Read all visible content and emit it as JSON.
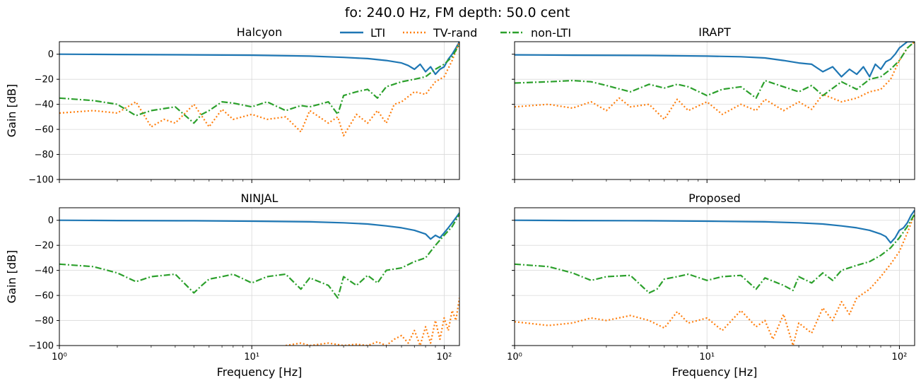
{
  "figure": {
    "suptitle": "fo: 240.0 Hz, FM depth: 50.0 cent"
  },
  "legend": {
    "placement": "top-center",
    "entries": [
      {
        "label": "LTI",
        "color": "#1f77b4",
        "style": "solid"
      },
      {
        "label": "TV-rand",
        "color": "#ff7f0e",
        "style": "dotted"
      },
      {
        "label": "non-LTI",
        "color": "#2ca02c",
        "style": "dashdot"
      }
    ]
  },
  "chart_data": [
    {
      "type": "line",
      "title": "Halcyon",
      "xlabel": "",
      "ylabel": "Gain [dB]",
      "xscale": "log",
      "xlim": [
        1,
        120
      ],
      "ylim": [
        -100,
        10
      ],
      "yticks": [
        0,
        -20,
        -40,
        -60,
        -80,
        -100
      ],
      "ytick_labels": [
        "0",
        "−20",
        "−40",
        "−60",
        "−80",
        "−100"
      ],
      "xtick_labels": [],
      "grid": true,
      "series": [
        {
          "name": "LTI",
          "color": "#1f77b4",
          "style": "solid",
          "x": [
            1,
            2,
            5,
            10,
            20,
            30,
            40,
            50,
            60,
            65,
            70,
            75,
            80,
            85,
            90,
            95,
            100,
            105,
            110,
            115,
            120
          ],
          "y": [
            0,
            -0.2,
            -0.5,
            -0.8,
            -1.5,
            -2.5,
            -3.5,
            -5,
            -7,
            -9,
            -12,
            -8,
            -14,
            -10,
            -16,
            -12,
            -10,
            -4,
            0,
            5,
            10
          ]
        },
        {
          "name": "TV-rand",
          "color": "#ff7f0e",
          "style": "dotted",
          "x": [
            1,
            1.5,
            2,
            2.5,
            3,
            3.5,
            4,
            5,
            6,
            7,
            8,
            10,
            12,
            15,
            18,
            20,
            25,
            28,
            30,
            35,
            40,
            45,
            50,
            55,
            60,
            70,
            80,
            90,
            100,
            110,
            120
          ],
          "y": [
            -47,
            -45,
            -47,
            -38,
            -58,
            -52,
            -55,
            -40,
            -58,
            -44,
            -52,
            -48,
            -52,
            -50,
            -62,
            -45,
            -55,
            -50,
            -65,
            -48,
            -55,
            -45,
            -55,
            -40,
            -38,
            -30,
            -32,
            -22,
            -18,
            -5,
            10
          ]
        },
        {
          "name": "non-LTI",
          "color": "#2ca02c",
          "style": "dashdot",
          "x": [
            1,
            1.5,
            2,
            2.5,
            3,
            4,
            5,
            5.5,
            6,
            7,
            8,
            10,
            12,
            15,
            18,
            20,
            25,
            28,
            30,
            35,
            40,
            45,
            50,
            60,
            70,
            80,
            90,
            100,
            110,
            120
          ],
          "y": [
            -35,
            -37,
            -40,
            -49,
            -45,
            -42,
            -55,
            -48,
            -45,
            -38,
            -39,
            -42,
            -38,
            -45,
            -41,
            -42,
            -38,
            -48,
            -33,
            -30,
            -28,
            -35,
            -26,
            -22,
            -20,
            -18,
            -12,
            -8,
            -2,
            8
          ]
        }
      ]
    },
    {
      "type": "line",
      "title": "IRAPT",
      "xlabel": "",
      "ylabel": "",
      "xscale": "log",
      "xlim": [
        1,
        120
      ],
      "ylim": [
        -100,
        10
      ],
      "yticks": [
        0,
        -20,
        -40,
        -60,
        -80,
        -100
      ],
      "ytick_labels": [],
      "xtick_labels": [],
      "grid": true,
      "series": [
        {
          "name": "LTI",
          "color": "#1f77b4",
          "style": "solid",
          "x": [
            1,
            2,
            5,
            10,
            15,
            20,
            25,
            30,
            35,
            40,
            45,
            50,
            55,
            60,
            65,
            70,
            75,
            80,
            85,
            90,
            95,
            100,
            110,
            120
          ],
          "y": [
            -0.5,
            -0.8,
            -1,
            -1.5,
            -2,
            -3,
            -5,
            -7,
            -8,
            -14,
            -10,
            -18,
            -12,
            -16,
            -10,
            -18,
            -8,
            -12,
            -6,
            -4,
            0,
            5,
            10,
            10
          ]
        },
        {
          "name": "TV-rand",
          "color": "#ff7f0e",
          "style": "dotted",
          "x": [
            1,
            1.5,
            2,
            2.5,
            3,
            3.5,
            4,
            5,
            6,
            7,
            8,
            10,
            12,
            15,
            18,
            20,
            25,
            30,
            35,
            40,
            50,
            60,
            70,
            80,
            90,
            100,
            110,
            120
          ],
          "y": [
            -42,
            -40,
            -43,
            -38,
            -45,
            -35,
            -42,
            -40,
            -52,
            -36,
            -45,
            -38,
            -48,
            -40,
            -45,
            -36,
            -45,
            -38,
            -44,
            -32,
            -38,
            -35,
            -30,
            -28,
            -20,
            -5,
            5,
            10
          ]
        },
        {
          "name": "non-LTI",
          "color": "#2ca02c",
          "style": "dashdot",
          "x": [
            1,
            1.5,
            2,
            2.5,
            3,
            4,
            5,
            6,
            7,
            8,
            10,
            12,
            15,
            18,
            20,
            25,
            30,
            35,
            40,
            50,
            60,
            70,
            80,
            90,
            100,
            110,
            120
          ],
          "y": [
            -23,
            -22,
            -21,
            -22,
            -25,
            -30,
            -24,
            -27,
            -24,
            -26,
            -33,
            -28,
            -26,
            -35,
            -21,
            -26,
            -30,
            -25,
            -33,
            -22,
            -28,
            -20,
            -18,
            -12,
            -5,
            5,
            10
          ]
        }
      ]
    },
    {
      "type": "line",
      "title": "NINJAL",
      "xlabel": "Frequency [Hz]",
      "ylabel": "Gain [dB]",
      "xscale": "log",
      "xlim": [
        1,
        120
      ],
      "ylim": [
        -100,
        10
      ],
      "yticks": [
        0,
        -20,
        -40,
        -60,
        -80,
        -100
      ],
      "ytick_labels": [
        "0",
        "−20",
        "−40",
        "−60",
        "−80",
        "−100"
      ],
      "xtick_labels": [
        "10⁰",
        "10¹",
        "10²"
      ],
      "grid": true,
      "series": [
        {
          "name": "LTI",
          "color": "#1f77b4",
          "style": "solid",
          "x": [
            1,
            2,
            5,
            10,
            20,
            30,
            40,
            50,
            60,
            70,
            80,
            85,
            90,
            95,
            100,
            105,
            110,
            115,
            120
          ],
          "y": [
            0,
            -0.2,
            -0.4,
            -0.7,
            -1.2,
            -2,
            -3,
            -4.5,
            -6,
            -8,
            -11,
            -15,
            -12,
            -14,
            -10,
            -6,
            -2,
            2,
            6
          ]
        },
        {
          "name": "TV-rand",
          "color": "#ff7f0e",
          "style": "dotted",
          "x": [
            15,
            18,
            20,
            25,
            30,
            35,
            40,
            45,
            50,
            55,
            60,
            65,
            70,
            75,
            80,
            85,
            90,
            95,
            100,
            105,
            110,
            115,
            120
          ],
          "y": [
            -100,
            -98,
            -100,
            -98,
            -100,
            -99,
            -100,
            -97,
            -100,
            -95,
            -92,
            -98,
            -88,
            -100,
            -85,
            -98,
            -80,
            -95,
            -78,
            -88,
            -72,
            -80,
            -62
          ]
        },
        {
          "name": "non-LTI",
          "color": "#2ca02c",
          "style": "dashdot",
          "x": [
            1,
            1.5,
            2,
            2.5,
            3,
            4,
            5,
            5.5,
            6,
            7,
            8,
            10,
            12,
            15,
            18,
            20,
            25,
            28,
            30,
            35,
            40,
            45,
            50,
            60,
            70,
            80,
            90,
            100,
            110,
            120
          ],
          "y": [
            -35,
            -37,
            -42,
            -49,
            -45,
            -43,
            -58,
            -52,
            -47,
            -45,
            -43,
            -50,
            -45,
            -43,
            -55,
            -46,
            -52,
            -62,
            -45,
            -52,
            -44,
            -50,
            -40,
            -38,
            -33,
            -30,
            -20,
            -12,
            -5,
            5
          ]
        }
      ]
    },
    {
      "type": "line",
      "title": "Proposed",
      "xlabel": "Frequency [Hz]",
      "ylabel": "",
      "xscale": "log",
      "xlim": [
        1,
        120
      ],
      "ylim": [
        -100,
        10
      ],
      "yticks": [
        0,
        -20,
        -40,
        -60,
        -80,
        -100
      ],
      "ytick_labels": [],
      "xtick_labels": [
        "10⁰",
        "10¹",
        "10²"
      ],
      "grid": true,
      "series": [
        {
          "name": "LTI",
          "color": "#1f77b4",
          "style": "solid",
          "x": [
            1,
            2,
            5,
            10,
            20,
            30,
            40,
            50,
            60,
            70,
            80,
            85,
            90,
            95,
            100,
            105,
            110,
            115,
            120
          ],
          "y": [
            0,
            -0.2,
            -0.4,
            -0.7,
            -1.2,
            -2,
            -3,
            -4.5,
            -6,
            -8,
            -11,
            -13,
            -18,
            -14,
            -8,
            -6,
            -2,
            4,
            8
          ]
        },
        {
          "name": "TV-rand",
          "color": "#ff7f0e",
          "style": "dotted",
          "x": [
            1,
            1.5,
            2,
            2.5,
            3,
            4,
            5,
            6,
            7,
            8,
            10,
            12,
            15,
            18,
            20,
            22,
            25,
            28,
            30,
            35,
            40,
            45,
            50,
            55,
            60,
            70,
            80,
            90,
            100,
            110,
            120
          ],
          "y": [
            -81,
            -84,
            -82,
            -78,
            -80,
            -76,
            -80,
            -86,
            -73,
            -82,
            -78,
            -88,
            -72,
            -85,
            -80,
            -95,
            -75,
            -100,
            -82,
            -90,
            -70,
            -80,
            -65,
            -75,
            -62,
            -55,
            -45,
            -35,
            -25,
            -10,
            5
          ]
        },
        {
          "name": "non-LTI",
          "color": "#2ca02c",
          "style": "dashdot",
          "x": [
            1,
            1.5,
            2,
            2.5,
            3,
            4,
            5,
            5.5,
            6,
            7,
            8,
            10,
            12,
            15,
            18,
            20,
            25,
            28,
            30,
            35,
            40,
            45,
            50,
            60,
            70,
            80,
            90,
            100,
            110,
            120
          ],
          "y": [
            -35,
            -37,
            -42,
            -48,
            -45,
            -44,
            -58,
            -55,
            -47,
            -45,
            -43,
            -48,
            -45,
            -44,
            -55,
            -46,
            -52,
            -56,
            -45,
            -50,
            -42,
            -48,
            -40,
            -36,
            -33,
            -28,
            -22,
            -14,
            -5,
            5
          ]
        }
      ]
    }
  ]
}
